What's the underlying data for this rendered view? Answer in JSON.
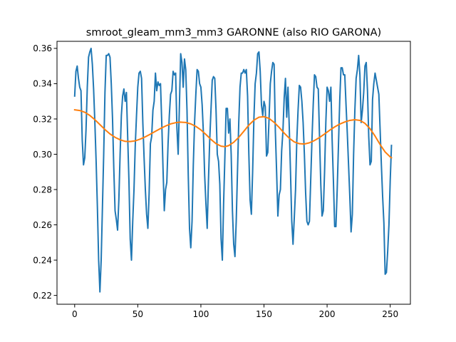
{
  "chart_data": {
    "type": "line",
    "title": "smroot_gleam_mm3_mm3 GARONNE (also RIO GARONA)",
    "xlabel": "",
    "ylabel": "",
    "xlim": [
      -14,
      266
    ],
    "ylim": [
      0.215,
      0.364
    ],
    "xticks": [
      0,
      50,
      100,
      150,
      200,
      250
    ],
    "yticks": [
      0.22,
      0.24,
      0.26,
      0.28,
      0.3,
      0.32,
      0.34,
      0.36
    ],
    "ytick_labels": [
      "0.22",
      "0.24",
      "0.26",
      "0.28",
      "0.30",
      "0.32",
      "0.34",
      "0.36"
    ],
    "grid": false,
    "legend": null,
    "colors": {
      "series1": "#1f77b4",
      "series2": "#ff7f0e"
    },
    "series": [
      {
        "points": [
          [
            0,
            0.333
          ],
          [
            1,
            0.347
          ],
          [
            2,
            0.35
          ],
          [
            3,
            0.343
          ],
          [
            4,
            0.338
          ],
          [
            5,
            0.336
          ],
          [
            6,
            0.308
          ],
          [
            7,
            0.294
          ],
          [
            8,
            0.298
          ],
          [
            9,
            0.314
          ],
          [
            10,
            0.338
          ],
          [
            11,
            0.355
          ],
          [
            12,
            0.358
          ],
          [
            13,
            0.36
          ],
          [
            14,
            0.351
          ],
          [
            15,
            0.337
          ],
          [
            16,
            0.318
          ],
          [
            17,
            0.296
          ],
          [
            18,
            0.27
          ],
          [
            19,
            0.24
          ],
          [
            20,
            0.222
          ],
          [
            21,
            0.24
          ],
          [
            22,
            0.27
          ],
          [
            23,
            0.3
          ],
          [
            24,
            0.335
          ],
          [
            25,
            0.356
          ],
          [
            26,
            0.356
          ],
          [
            27,
            0.357
          ],
          [
            28,
            0.355
          ],
          [
            29,
            0.34
          ],
          [
            30,
            0.32
          ],
          [
            31,
            0.292
          ],
          [
            32,
            0.268
          ],
          [
            33,
            0.263
          ],
          [
            34,
            0.257
          ],
          [
            35,
            0.274
          ],
          [
            36,
            0.3
          ],
          [
            37,
            0.322
          ],
          [
            38,
            0.333
          ],
          [
            39,
            0.337
          ],
          [
            40,
            0.33
          ],
          [
            41,
            0.335
          ],
          [
            42,
            0.31
          ],
          [
            43,
            0.285
          ],
          [
            44,
            0.252
          ],
          [
            45,
            0.24
          ],
          [
            46,
            0.262
          ],
          [
            47,
            0.28
          ],
          [
            48,
            0.305
          ],
          [
            49,
            0.322
          ],
          [
            50,
            0.338
          ],
          [
            51,
            0.346
          ],
          [
            52,
            0.347
          ],
          [
            53,
            0.343
          ],
          [
            54,
            0.318
          ],
          [
            55,
            0.298
          ],
          [
            56,
            0.28
          ],
          [
            57,
            0.266
          ],
          [
            58,
            0.258
          ],
          [
            59,
            0.278
          ],
          [
            60,
            0.306
          ],
          [
            61,
            0.31
          ],
          [
            62,
            0.325
          ],
          [
            63,
            0.33
          ],
          [
            64,
            0.346
          ],
          [
            65,
            0.336
          ],
          [
            66,
            0.341
          ],
          [
            67,
            0.339
          ],
          [
            68,
            0.34
          ],
          [
            69,
            0.318
          ],
          [
            70,
            0.292
          ],
          [
            71,
            0.268
          ],
          [
            72,
            0.28
          ],
          [
            73,
            0.284
          ],
          [
            74,
            0.306
          ],
          [
            75,
            0.322
          ],
          [
            76,
            0.334
          ],
          [
            77,
            0.336
          ],
          [
            78,
            0.347
          ],
          [
            79,
            0.345
          ],
          [
            80,
            0.346
          ],
          [
            81,
            0.315
          ],
          [
            82,
            0.3
          ],
          [
            83,
            0.328
          ],
          [
            84,
            0.357
          ],
          [
            85,
            0.352
          ],
          [
            86,
            0.338
          ],
          [
            87,
            0.354
          ],
          [
            88,
            0.348
          ],
          [
            89,
            0.325
          ],
          [
            90,
            0.288
          ],
          [
            91,
            0.258
          ],
          [
            92,
            0.247
          ],
          [
            93,
            0.262
          ],
          [
            94,
            0.294
          ],
          [
            95,
            0.318
          ],
          [
            96,
            0.334
          ],
          [
            97,
            0.348
          ],
          [
            98,
            0.347
          ],
          [
            99,
            0.34
          ],
          [
            100,
            0.338
          ],
          [
            101,
            0.328
          ],
          [
            102,
            0.312
          ],
          [
            103,
            0.288
          ],
          [
            104,
            0.272
          ],
          [
            105,
            0.258
          ],
          [
            106,
            0.285
          ],
          [
            107,
            0.308
          ],
          [
            108,
            0.325
          ],
          [
            109,
            0.342
          ],
          [
            110,
            0.344
          ],
          [
            111,
            0.343
          ],
          [
            112,
            0.325
          ],
          [
            113,
            0.3
          ],
          [
            114,
            0.296
          ],
          [
            115,
            0.283
          ],
          [
            116,
            0.252
          ],
          [
            117,
            0.24
          ],
          [
            118,
            0.272
          ],
          [
            119,
            0.298
          ],
          [
            120,
            0.326
          ],
          [
            121,
            0.326
          ],
          [
            122,
            0.312
          ],
          [
            123,
            0.32
          ],
          [
            124,
            0.3
          ],
          [
            125,
            0.268
          ],
          [
            126,
            0.249
          ],
          [
            127,
            0.242
          ],
          [
            128,
            0.262
          ],
          [
            129,
            0.29
          ],
          [
            130,
            0.318
          ],
          [
            131,
            0.338
          ],
          [
            132,
            0.346
          ],
          [
            133,
            0.346
          ],
          [
            134,
            0.348
          ],
          [
            135,
            0.346
          ],
          [
            136,
            0.348
          ],
          [
            137,
            0.333
          ],
          [
            138,
            0.3
          ],
          [
            139,
            0.274
          ],
          [
            140,
            0.266
          ],
          [
            141,
            0.29
          ],
          [
            142,
            0.32
          ],
          [
            143,
            0.34
          ],
          [
            144,
            0.346
          ],
          [
            145,
            0.357
          ],
          [
            146,
            0.358
          ],
          [
            147,
            0.347
          ],
          [
            148,
            0.328
          ],
          [
            149,
            0.322
          ],
          [
            150,
            0.33
          ],
          [
            151,
            0.327
          ],
          [
            152,
            0.299
          ],
          [
            153,
            0.301
          ],
          [
            154,
            0.32
          ],
          [
            155,
            0.34
          ],
          [
            156,
            0.347
          ],
          [
            157,
            0.352
          ],
          [
            158,
            0.351
          ],
          [
            159,
            0.313
          ],
          [
            160,
            0.29
          ],
          [
            161,
            0.265
          ],
          [
            162,
            0.277
          ],
          [
            163,
            0.28
          ],
          [
            164,
            0.302
          ],
          [
            165,
            0.313
          ],
          [
            166,
            0.332
          ],
          [
            167,
            0.343
          ],
          [
            168,
            0.321
          ],
          [
            169,
            0.338
          ],
          [
            170,
            0.316
          ],
          [
            171,
            0.29
          ],
          [
            172,
            0.262
          ],
          [
            173,
            0.249
          ],
          [
            174,
            0.264
          ],
          [
            175,
            0.28
          ],
          [
            176,
            0.308
          ],
          [
            177,
            0.325
          ],
          [
            178,
            0.339
          ],
          [
            179,
            0.338
          ],
          [
            180,
            0.33
          ],
          [
            181,
            0.318
          ],
          [
            182,
            0.3
          ],
          [
            183,
            0.278
          ],
          [
            184,
            0.262
          ],
          [
            185,
            0.26
          ],
          [
            186,
            0.262
          ],
          [
            187,
            0.285
          ],
          [
            188,
            0.308
          ],
          [
            189,
            0.328
          ],
          [
            190,
            0.345
          ],
          [
            191,
            0.344
          ],
          [
            192,
            0.338
          ],
          [
            193,
            0.337
          ],
          [
            194,
            0.31
          ],
          [
            195,
            0.283
          ],
          [
            196,
            0.265
          ],
          [
            197,
            0.268
          ],
          [
            198,
            0.29
          ],
          [
            199,
            0.318
          ],
          [
            200,
            0.338
          ],
          [
            201,
            0.336
          ],
          [
            202,
            0.33
          ],
          [
            203,
            0.338
          ],
          [
            204,
            0.308
          ],
          [
            205,
            0.285
          ],
          [
            206,
            0.259
          ],
          [
            207,
            0.259
          ],
          [
            208,
            0.28
          ],
          [
            209,
            0.305
          ],
          [
            210,
            0.33
          ],
          [
            211,
            0.349
          ],
          [
            212,
            0.349
          ],
          [
            213,
            0.345
          ],
          [
            214,
            0.345
          ],
          [
            215,
            0.328
          ],
          [
            216,
            0.312
          ],
          [
            217,
            0.294
          ],
          [
            218,
            0.276
          ],
          [
            219,
            0.256
          ],
          [
            220,
            0.266
          ],
          [
            221,
            0.3
          ],
          [
            222,
            0.325
          ],
          [
            223,
            0.343
          ],
          [
            224,
            0.348
          ],
          [
            225,
            0.356
          ],
          [
            226,
            0.345
          ],
          [
            227,
            0.318
          ],
          [
            228,
            0.325
          ],
          [
            229,
            0.335
          ],
          [
            230,
            0.35
          ],
          [
            231,
            0.352
          ],
          [
            232,
            0.336
          ],
          [
            233,
            0.31
          ],
          [
            234,
            0.294
          ],
          [
            235,
            0.296
          ],
          [
            236,
            0.331
          ],
          [
            237,
            0.34
          ],
          [
            238,
            0.346
          ],
          [
            239,
            0.342
          ],
          [
            240,
            0.338
          ],
          [
            241,
            0.334
          ],
          [
            242,
            0.314
          ],
          [
            243,
            0.294
          ],
          [
            244,
            0.276
          ],
          [
            245,
            0.261
          ],
          [
            246,
            0.232
          ],
          [
            247,
            0.233
          ],
          [
            248,
            0.245
          ],
          [
            249,
            0.26
          ],
          [
            250,
            0.285
          ],
          [
            251,
            0.305
          ]
        ]
      },
      {
        "points": [
          [
            0,
            0.3252
          ],
          [
            4,
            0.3248
          ],
          [
            8,
            0.3238
          ],
          [
            12,
            0.322
          ],
          [
            16,
            0.3196
          ],
          [
            20,
            0.3168
          ],
          [
            24,
            0.314
          ],
          [
            28,
            0.3115
          ],
          [
            32,
            0.3096
          ],
          [
            36,
            0.3082
          ],
          [
            40,
            0.3073
          ],
          [
            44,
            0.3072
          ],
          [
            48,
            0.3076
          ],
          [
            52,
            0.3086
          ],
          [
            56,
            0.3099
          ],
          [
            60,
            0.3114
          ],
          [
            64,
            0.313
          ],
          [
            68,
            0.3146
          ],
          [
            72,
            0.316
          ],
          [
            76,
            0.3172
          ],
          [
            80,
            0.3179
          ],
          [
            84,
            0.3182
          ],
          [
            88,
            0.318
          ],
          [
            92,
            0.3172
          ],
          [
            96,
            0.3158
          ],
          [
            100,
            0.3138
          ],
          [
            104,
            0.3112
          ],
          [
            108,
            0.3084
          ],
          [
            112,
            0.306
          ],
          [
            116,
            0.3046
          ],
          [
            119,
            0.3043
          ],
          [
            122,
            0.3049
          ],
          [
            126,
            0.3068
          ],
          [
            130,
            0.3096
          ],
          [
            134,
            0.313
          ],
          [
            138,
            0.3165
          ],
          [
            142,
            0.3193
          ],
          [
            146,
            0.321
          ],
          [
            150,
            0.3213
          ],
          [
            154,
            0.3203
          ],
          [
            158,
            0.3181
          ],
          [
            162,
            0.3152
          ],
          [
            166,
            0.312
          ],
          [
            170,
            0.3091
          ],
          [
            174,
            0.307
          ],
          [
            178,
            0.306
          ],
          [
            182,
            0.3058
          ],
          [
            186,
            0.3065
          ],
          [
            190,
            0.3078
          ],
          [
            194,
            0.3095
          ],
          [
            198,
            0.3115
          ],
          [
            202,
            0.3136
          ],
          [
            206,
            0.3155
          ],
          [
            210,
            0.3171
          ],
          [
            214,
            0.3183
          ],
          [
            218,
            0.3192
          ],
          [
            222,
            0.3196
          ],
          [
            226,
            0.3192
          ],
          [
            230,
            0.3175
          ],
          [
            234,
            0.3145
          ],
          [
            238,
            0.3103
          ],
          [
            242,
            0.3055
          ],
          [
            246,
            0.3013
          ],
          [
            250,
            0.2985
          ],
          [
            251,
            0.298
          ]
        ]
      }
    ]
  }
}
